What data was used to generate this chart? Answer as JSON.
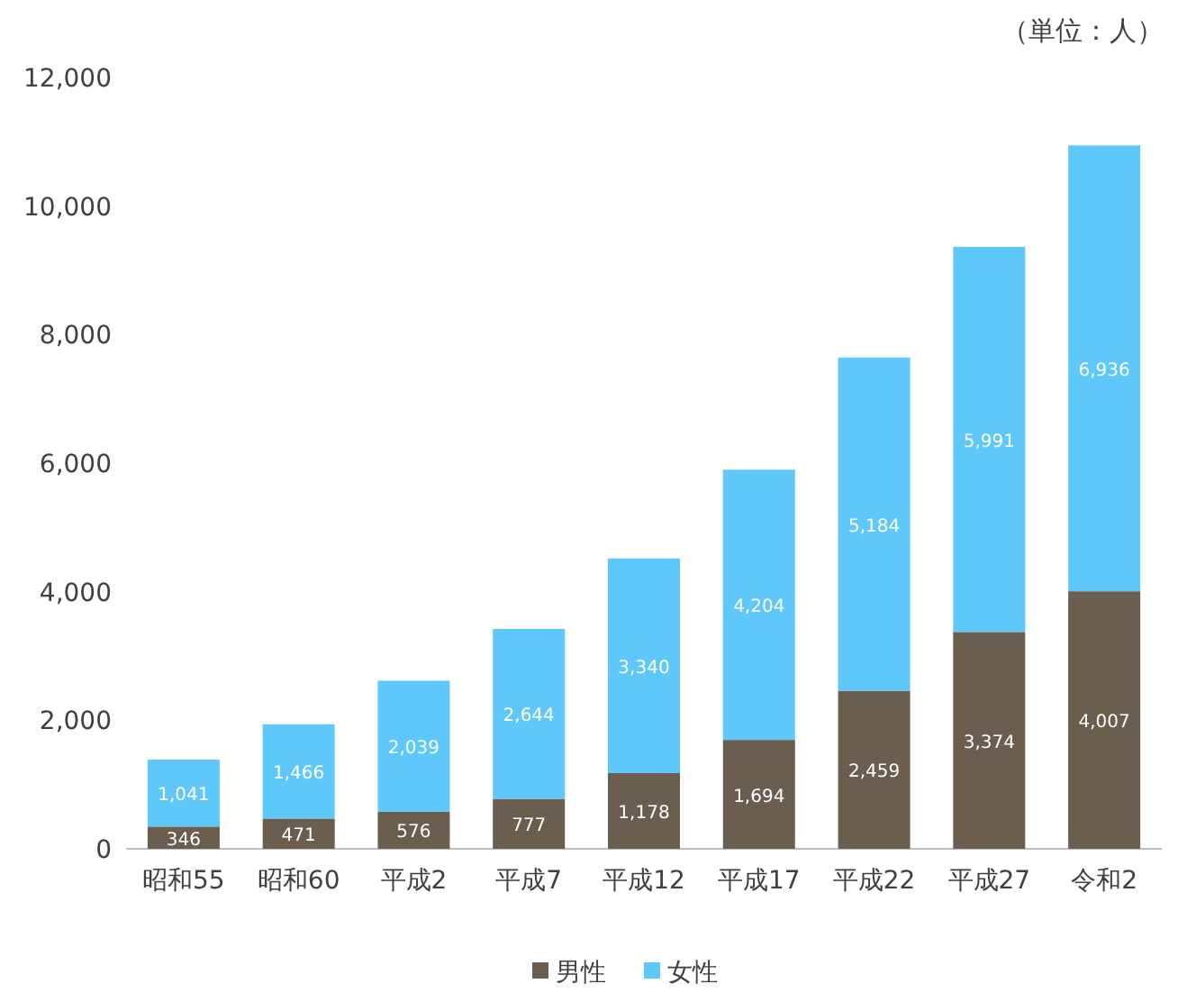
{
  "chart_data": {
    "type": "bar",
    "stacked": true,
    "categories": [
      "昭和55",
      "昭和60",
      "平成2",
      "平成7",
      "平成12",
      "平成17",
      "平成22",
      "平成27",
      "令和2"
    ],
    "series": [
      {
        "name": "男性",
        "color": "#6b5e4f",
        "values": [
          346,
          471,
          576,
          777,
          1178,
          1694,
          2459,
          3374,
          4007
        ],
        "value_labels": [
          "346",
          "471",
          "576",
          "777",
          "1,178",
          "1,694",
          "2,459",
          "3,374",
          "4,007"
        ]
      },
      {
        "name": "女性",
        "color": "#5ec8fb",
        "values": [
          1041,
          1466,
          2039,
          2644,
          3340,
          4204,
          5184,
          5991,
          6936
        ],
        "value_labels": [
          "1,041",
          "1,466",
          "2,039",
          "2,644",
          "3,340",
          "4,204",
          "5,184",
          "5,991",
          "6,936"
        ]
      }
    ],
    "ylim": [
      0,
      12000
    ],
    "yticks": [
      {
        "value": 0,
        "label": "0"
      },
      {
        "value": 2000,
        "label": "2,000"
      },
      {
        "value": 4000,
        "label": "4,000"
      },
      {
        "value": 6000,
        "label": "6,000"
      },
      {
        "value": 8000,
        "label": "8,000"
      },
      {
        "value": 10000,
        "label": "10,000"
      },
      {
        "value": 12000,
        "label": "12,000"
      }
    ],
    "annotations": [
      "（単位：人）"
    ],
    "legend": "bottom"
  }
}
